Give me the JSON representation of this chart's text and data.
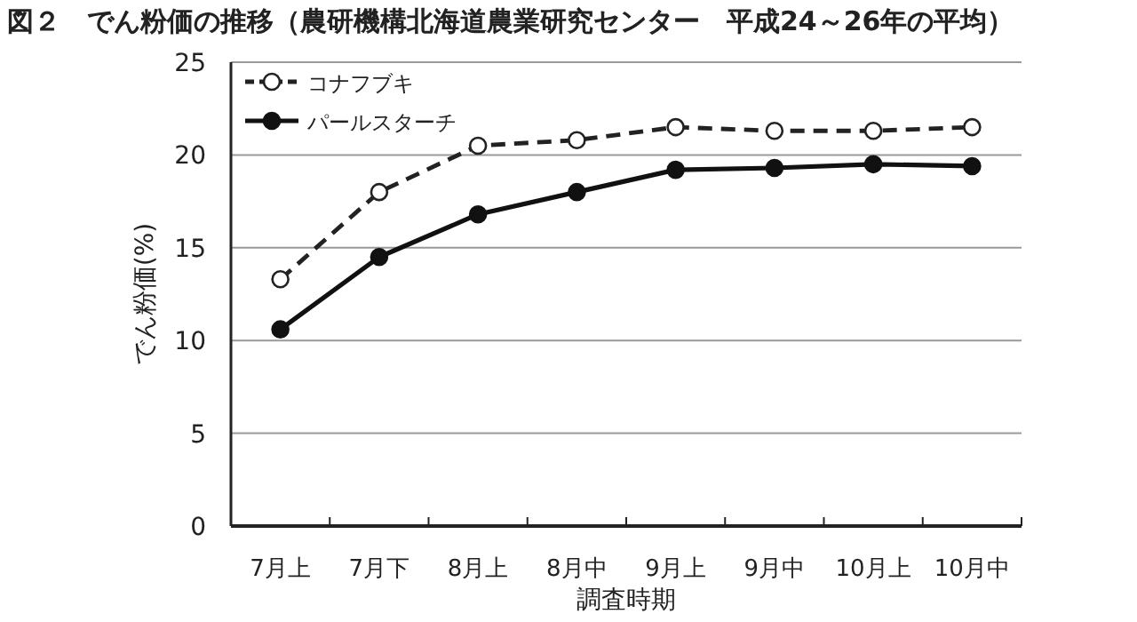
{
  "chart_data": {
    "type": "line",
    "title": "図２　でん粉価の推移（農研機構北海道農業研究センター　平成24～26年の平均）",
    "xlabel": "調査時期",
    "ylabel": "でん粉価(%)",
    "categories": [
      "7月上",
      "7月下",
      "8月上",
      "8月中",
      "9月上",
      "9月中",
      "10月上",
      "10月中"
    ],
    "series": [
      {
        "name": "コナフブキ",
        "color": "#222222",
        "line_style": "dashed",
        "marker": "circle",
        "values": [
          13.3,
          18.0,
          20.5,
          20.8,
          21.5,
          21.3,
          21.3,
          21.5
        ]
      },
      {
        "name": "パールスターチ",
        "color": "#111111",
        "line_style": "solid",
        "marker": "circle",
        "values": [
          10.6,
          14.5,
          16.8,
          18.0,
          19.2,
          19.3,
          19.5,
          19.4
        ]
      }
    ],
    "ylim": [
      0,
      25
    ],
    "yticks": [
      0,
      5,
      10,
      15,
      20,
      25
    ],
    "grid": "y",
    "legend": "top left"
  }
}
